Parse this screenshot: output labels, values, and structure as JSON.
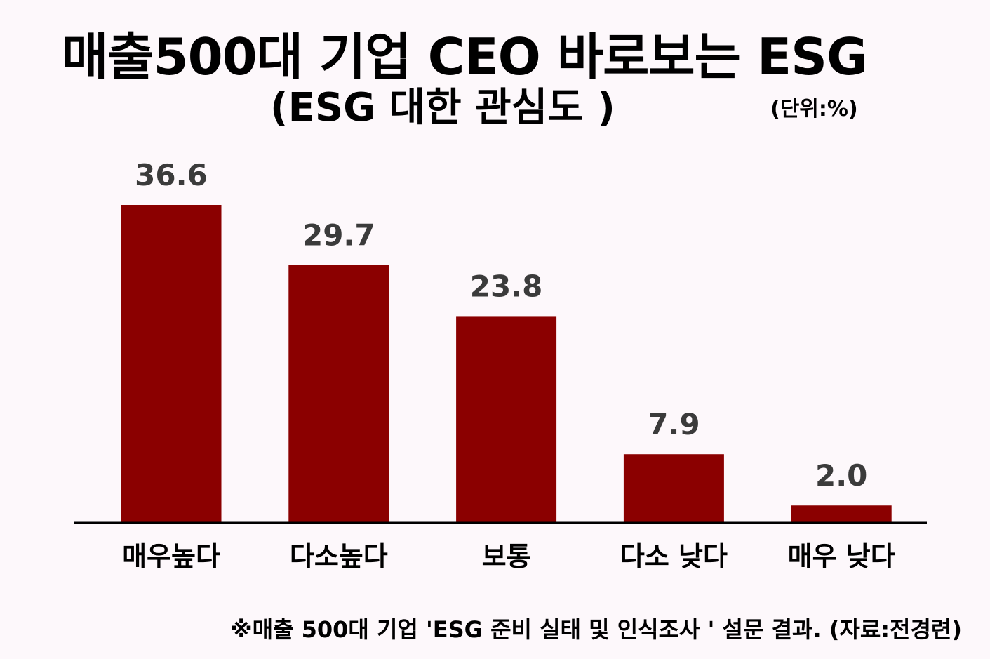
{
  "title": "매출500대 기업 CEO 바로보는  ESG",
  "subtitle": "(ESG 대한 관심도 )",
  "unit": "(단위:%)",
  "footnote": "※매출 500대 기업 'ESG 준비 실태 및 인식조사 ' 설문 결과.  (자료:전경련)",
  "chart_data": {
    "type": "bar",
    "categories": [
      "매우높다",
      "다소높다",
      "보통",
      "다소 낮다",
      "매우 낮다"
    ],
    "values": [
      36.6,
      29.7,
      23.8,
      7.9,
      2.0
    ],
    "value_labels": [
      "36.6",
      "29.7",
      "23.8",
      "7.9",
      "2.0"
    ],
    "title": "매출500대 기업 CEO 바로보는  ESG",
    "subtitle": "(ESG 대한 관심도 )",
    "ylabel": "",
    "xlabel": "",
    "ylim": [
      0,
      36.6
    ],
    "grid": false,
    "legend": "none",
    "bar_color": "#8b0000"
  }
}
